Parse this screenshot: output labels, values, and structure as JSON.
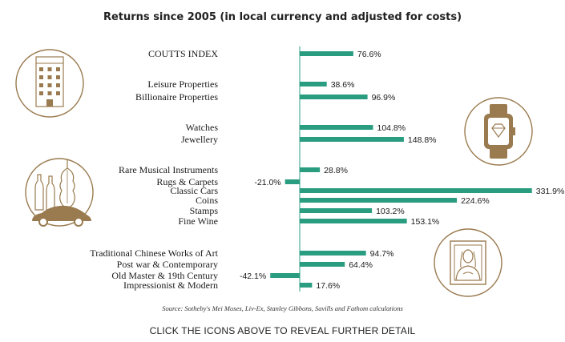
{
  "title": "Returns since 2005 (in local currency and adjusted for costs)",
  "source": "Source: Sotheby's Mei Moses, Liv-Ex, Stanley Gibbons, Savills and Fathom calculations",
  "cta": "CLICK THE ICONS ABOVE TO REVEAL FURTHER DETAIL",
  "colors": {
    "bar": "#2a9d80",
    "icon": "#9a7b4f",
    "axis": "#2a9d80"
  },
  "icons": [
    {
      "name": "building-icon"
    },
    {
      "name": "watch-icon"
    },
    {
      "name": "instruments-car-icon"
    },
    {
      "name": "painting-icon"
    }
  ],
  "chart_data": {
    "type": "bar",
    "orientation": "horizontal",
    "title": "Returns since 2005 (in local currency and adjusted for costs)",
    "xlim": [
      -50,
      350
    ],
    "grid": false,
    "categories": [
      "COUTTS INDEX",
      "Leisure Properties",
      "Billionaire Properties",
      "Watches",
      "Jewellery",
      "Rare Musical Instruments",
      "Rugs & Carpets",
      "Classic Cars",
      "Coins",
      "Stamps",
      "Fine Wine",
      "Traditional Chinese Works of Art",
      "Post war & Contemporary",
      "Old Master & 19th Century",
      "Impressionist & Modern"
    ],
    "values": [
      76.6,
      38.6,
      96.9,
      104.8,
      148.8,
      28.8,
      -21.0,
      331.9,
      224.6,
      103.2,
      153.1,
      94.7,
      64.4,
      -42.1,
      17.6
    ],
    "labels": [
      "76.6%",
      "38.6%",
      "96.9%",
      "104.8%",
      "148.8%",
      "28.8%",
      "-21.0%",
      "331.9%",
      "224.6%",
      "103.2%",
      "153.1%",
      "94.7%",
      "64.4%",
      "-42.1%",
      "17.6%"
    ]
  }
}
